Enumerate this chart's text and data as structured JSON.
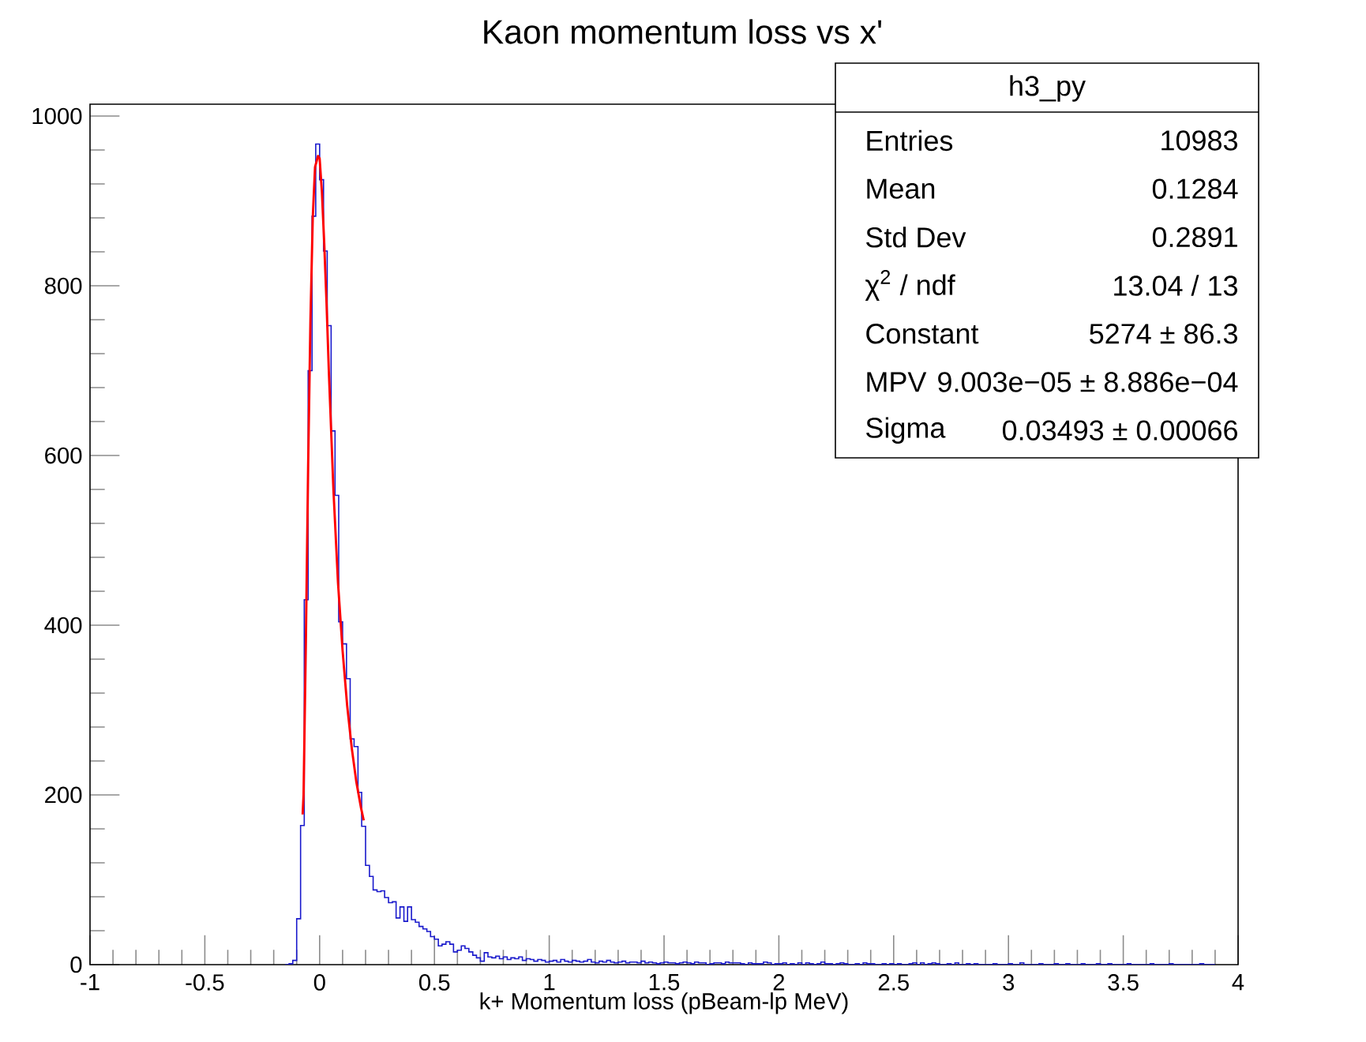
{
  "chart_data": {
    "type": "histogram",
    "title": "Kaon momentum loss vs x'",
    "xlabel": "k+ Momentum loss (pBeam-lp MeV)",
    "xlim": [
      -1,
      4
    ],
    "xticks": [
      -1,
      -0.5,
      0,
      0.5,
      1,
      1.5,
      2,
      2.5,
      3,
      3.5,
      4
    ],
    "ylim": [
      0,
      1014
    ],
    "yticks": [
      0,
      200,
      400,
      600,
      800,
      1000
    ],
    "series": [
      {
        "color": "#1a1acc",
        "bins": [
          -0.15,
          -0.133,
          -0.117,
          -0.1,
          -0.083,
          -0.067,
          -0.05,
          -0.033,
          -0.017,
          0,
          0.017,
          0.033,
          0.05,
          0.067,
          0.083,
          0.1,
          0.117,
          0.133,
          0.15,
          0.167,
          0.183,
          0.2,
          0.217,
          0.233,
          0.25,
          0.267,
          0.283,
          0.3,
          0.317,
          0.333,
          0.35,
          0.367,
          0.383,
          0.4,
          0.417,
          0.433,
          0.45,
          0.467,
          0.483,
          0.5,
          0.517,
          0.533,
          0.55,
          0.567,
          0.583,
          0.6,
          0.617,
          0.633,
          0.65,
          0.667,
          0.683,
          0.7,
          0.717,
          0.733,
          0.75,
          0.767,
          0.783,
          0.8,
          0.817,
          0.833,
          0.85,
          0.867,
          0.883,
          0.9,
          0.917,
          0.933,
          0.95,
          0.967,
          0.983,
          1,
          1.017,
          1.033,
          1.05,
          1.067,
          1.083,
          1.1,
          1.117,
          1.133,
          1.15,
          1.167,
          1.183,
          1.2,
          1.217,
          1.233,
          1.25,
          1.267,
          1.283,
          1.3,
          1.317,
          1.333,
          1.35,
          1.367,
          1.383,
          1.4,
          1.417,
          1.433,
          1.45,
          1.467,
          1.483,
          1.5,
          1.517,
          1.533,
          1.55,
          1.567,
          1.583,
          1.6,
          1.617,
          1.633,
          1.65,
          1.667,
          1.683,
          1.7,
          1.717,
          1.733,
          1.75,
          1.767,
          1.783,
          1.8,
          1.817,
          1.833,
          1.85,
          1.867,
          1.883,
          1.9,
          1.917,
          1.933,
          1.95,
          1.967,
          1.983,
          2,
          2.017,
          2.033,
          2.05,
          2.067,
          2.083,
          2.1,
          2.117,
          2.133,
          2.15,
          2.167,
          2.183,
          2.2,
          2.217,
          2.233,
          2.25,
          2.267,
          2.283,
          2.3,
          2.317,
          2.333,
          2.35,
          2.367,
          2.383,
          2.4,
          2.417,
          2.433,
          2.45,
          2.467,
          2.483,
          2.5,
          2.517,
          2.533,
          2.55,
          2.567,
          2.583,
          2.6,
          2.617,
          2.633,
          2.65,
          2.667,
          2.683,
          2.7,
          2.717,
          2.733,
          2.75,
          2.767,
          2.783,
          2.8,
          2.817,
          2.833,
          2.85,
          2.867,
          2.883,
          2.9,
          2.917,
          2.933,
          2.95,
          2.967,
          2.983,
          3,
          3.017,
          3.033,
          3.05,
          3.067,
          3.083,
          3.1,
          3.117,
          3.133,
          3.15,
          3.167,
          3.183,
          3.2,
          3.217,
          3.233,
          3.25,
          3.267,
          3.283,
          3.3,
          3.317,
          3.333,
          3.35,
          3.367,
          3.383,
          3.4,
          3.417,
          3.433,
          3.45,
          3.467,
          3.483,
          3.5,
          3.517,
          3.533,
          3.55,
          3.567,
          3.583,
          3.6,
          3.617,
          3.633,
          3.65,
          3.667,
          3.683,
          3.7,
          3.717,
          3.733,
          3.75,
          3.767,
          3.783,
          3.8,
          3.817,
          3.833,
          3.85,
          3.867,
          3.883,
          3.9
        ],
        "values": [
          0,
          1,
          5,
          54,
          164,
          430,
          700,
          882,
          967,
          925,
          841,
          753,
          629,
          553,
          404,
          378,
          337,
          266,
          257,
          203,
          163,
          117,
          104,
          88,
          86,
          87,
          79,
          73,
          74,
          55,
          68,
          51,
          68,
          53,
          50,
          45,
          42,
          39,
          33,
          30,
          22,
          24,
          27,
          24,
          15,
          17,
          22,
          19,
          15,
          11,
          8,
          4,
          14,
          9,
          8,
          10,
          7,
          9,
          6,
          8,
          7,
          9,
          5,
          7,
          6,
          4,
          6,
          5,
          3,
          4,
          5,
          3,
          6,
          4,
          3,
          5,
          4,
          3,
          4,
          6,
          3,
          2,
          4,
          3,
          5,
          3,
          2,
          3,
          4,
          2,
          3,
          3,
          2,
          4,
          2,
          3,
          2,
          1,
          2,
          3,
          2,
          2,
          1,
          2,
          3,
          2,
          1,
          3,
          2,
          2,
          0,
          1,
          2,
          2,
          1,
          3,
          2,
          2,
          2,
          1,
          0,
          2,
          1,
          1,
          1,
          3,
          2,
          0,
          1,
          1,
          2,
          0,
          1,
          0,
          2,
          0,
          2,
          1,
          0,
          1,
          3,
          1,
          1,
          0,
          1,
          2,
          1,
          0,
          0,
          1,
          0,
          2,
          1,
          1,
          0,
          0,
          1,
          0,
          1,
          0,
          1,
          0,
          0,
          1,
          2,
          0,
          2,
          0,
          1,
          2,
          1,
          0,
          0,
          1,
          0,
          2,
          0,
          0,
          1,
          0,
          1,
          0,
          0,
          0,
          0,
          1,
          0,
          0,
          0,
          1,
          0,
          0,
          2,
          0,
          0,
          0,
          0,
          1,
          0,
          0,
          0,
          1,
          0,
          0,
          1,
          0,
          0,
          0,
          1,
          0,
          0,
          0,
          1,
          0,
          0,
          1,
          0,
          0,
          0,
          0,
          1,
          0,
          0,
          0,
          0,
          0,
          1,
          0,
          0,
          0,
          0,
          1,
          0,
          0,
          0,
          0,
          0,
          0,
          0,
          1,
          0,
          0,
          0
        ]
      },
      {
        "type": "line",
        "color": "#ff0000",
        "x": [
          -0.074,
          -0.07,
          -0.06,
          -0.05,
          -0.04,
          -0.03,
          -0.02,
          -0.007,
          0,
          0.01,
          0.02,
          0.03,
          0.04,
          0.05,
          0.06,
          0.08,
          0.1,
          0.12,
          0.14,
          0.16,
          0.18,
          0.192
        ],
        "values": [
          177,
          200,
          380,
          590,
          760,
          880,
          940,
          953,
          950,
          910,
          850,
          780,
          700,
          630,
          560,
          450,
          370,
          305,
          255,
          215,
          185,
          170
        ]
      }
    ],
    "annotations": [
      "h3_py",
      "Entries",
      "10983",
      "Mean",
      "0.1284",
      "Std Dev",
      "0.2891",
      "χ$^{2}$ / ndf",
      "13.04 / 13",
      "Constant",
      "5274 ± 86.3",
      "MPV",
      "9.003e−05 ± 8.886e−04",
      "Sigma",
      "0.03493 ± 0.00066"
    ]
  }
}
